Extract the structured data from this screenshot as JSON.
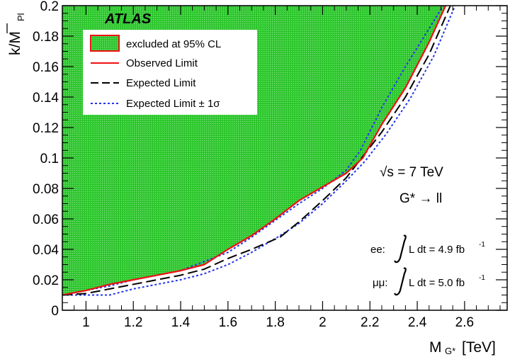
{
  "chart_data": {
    "type": "line",
    "experiment_label": "ATLAS",
    "xlabel": "M",
    "xlabel_sub": "G*",
    "xlabel_unit": "[TeV]",
    "ylabel": "k/M",
    "ylabel_sub": "Pl",
    "xlim": [
      0.9,
      2.78
    ],
    "ylim": [
      0,
      0.2
    ],
    "x_ticks": [
      1,
      1.2,
      1.4,
      1.6,
      1.8,
      2,
      2.2,
      2.4,
      2.6
    ],
    "x_tick_labels": [
      "1",
      "1.2",
      "1.4",
      "1.6",
      "1.8",
      "2",
      "2.2",
      "2.4",
      "2.6"
    ],
    "y_ticks": [
      0,
      0.02,
      0.04,
      0.06,
      0.08,
      0.1,
      0.12,
      0.14,
      0.16,
      0.18,
      0.2
    ],
    "y_tick_labels": [
      "0",
      "0.02",
      "0.04",
      "0.06",
      "0.08",
      "0.1",
      "0.12",
      "0.14",
      "0.16",
      "0.18",
      "0.2"
    ],
    "legend_position": "top-left",
    "legend": [
      {
        "label": "excluded at 95% CL",
        "style": "fill"
      },
      {
        "label": "Observed Limit",
        "style": "solid"
      },
      {
        "label": "Expected Limit",
        "style": "dashed"
      },
      {
        "label": "Expected Limit ± 1σ",
        "style": "dotted"
      }
    ],
    "annotations": {
      "energy": "√s = 7 TeV",
      "process": "G* → ll",
      "ee_label": "ee:",
      "ee_lumi": "L dt = 4.9 fb",
      "ee_lumi_exp": "-1",
      "mm_label": "μμ:",
      "mm_lumi": "L dt = 5.0 fb",
      "mm_lumi_exp": "-1"
    },
    "series": [
      {
        "name": "Observed Limit",
        "color": "#ee1111",
        "style": "solid",
        "x": [
          0.9,
          1.0,
          1.1,
          1.2,
          1.3,
          1.4,
          1.5,
          1.6,
          1.7,
          1.8,
          1.9,
          2.0,
          2.1,
          2.17,
          2.25,
          2.35,
          2.45,
          2.52
        ],
        "y": [
          0.01,
          0.013,
          0.017,
          0.02,
          0.023,
          0.026,
          0.03,
          0.04,
          0.049,
          0.06,
          0.072,
          0.081,
          0.09,
          0.1,
          0.122,
          0.146,
          0.176,
          0.2
        ]
      },
      {
        "name": "Expected Limit",
        "color": "#000000",
        "style": "dashed",
        "x": [
          0.9,
          1.0,
          1.1,
          1.2,
          1.3,
          1.4,
          1.5,
          1.6,
          1.7,
          1.82,
          1.9,
          2.0,
          2.1,
          2.16,
          2.25,
          2.35,
          2.45,
          2.54
        ],
        "y": [
          0.01,
          0.011,
          0.014,
          0.017,
          0.02,
          0.023,
          0.027,
          0.034,
          0.04,
          0.048,
          0.058,
          0.072,
          0.087,
          0.099,
          0.117,
          0.14,
          0.168,
          0.2
        ]
      },
      {
        "name": "Expected Limit + 1σ",
        "color": "#2233ee",
        "style": "dotted",
        "x": [
          0.9,
          1.0,
          1.1,
          1.2,
          1.3,
          1.4,
          1.5,
          1.6,
          1.7,
          1.8,
          1.9,
          2.0,
          2.1,
          2.16,
          2.25,
          2.35,
          2.45,
          2.51
        ],
        "y": [
          0.01,
          0.013,
          0.016,
          0.02,
          0.023,
          0.026,
          0.032,
          0.038,
          0.048,
          0.059,
          0.07,
          0.08,
          0.092,
          0.105,
          0.133,
          0.16,
          0.185,
          0.2
        ]
      },
      {
        "name": "Expected Limit − 1σ",
        "color": "#2233ee",
        "style": "dotted",
        "x": [
          0.9,
          1.0,
          1.1,
          1.2,
          1.3,
          1.4,
          1.5,
          1.6,
          1.7,
          1.81,
          1.9,
          2.0,
          2.1,
          2.18,
          2.27,
          2.37,
          2.47,
          2.56
        ],
        "y": [
          0.01,
          0.01,
          0.01,
          0.014,
          0.017,
          0.02,
          0.024,
          0.03,
          0.038,
          0.048,
          0.057,
          0.07,
          0.085,
          0.098,
          0.116,
          0.139,
          0.167,
          0.2
        ]
      }
    ],
    "excluded_region": {
      "color": "#33cc33",
      "border_color": "#ee1111",
      "boundary_series": "Observed Limit",
      "side": "above"
    }
  }
}
